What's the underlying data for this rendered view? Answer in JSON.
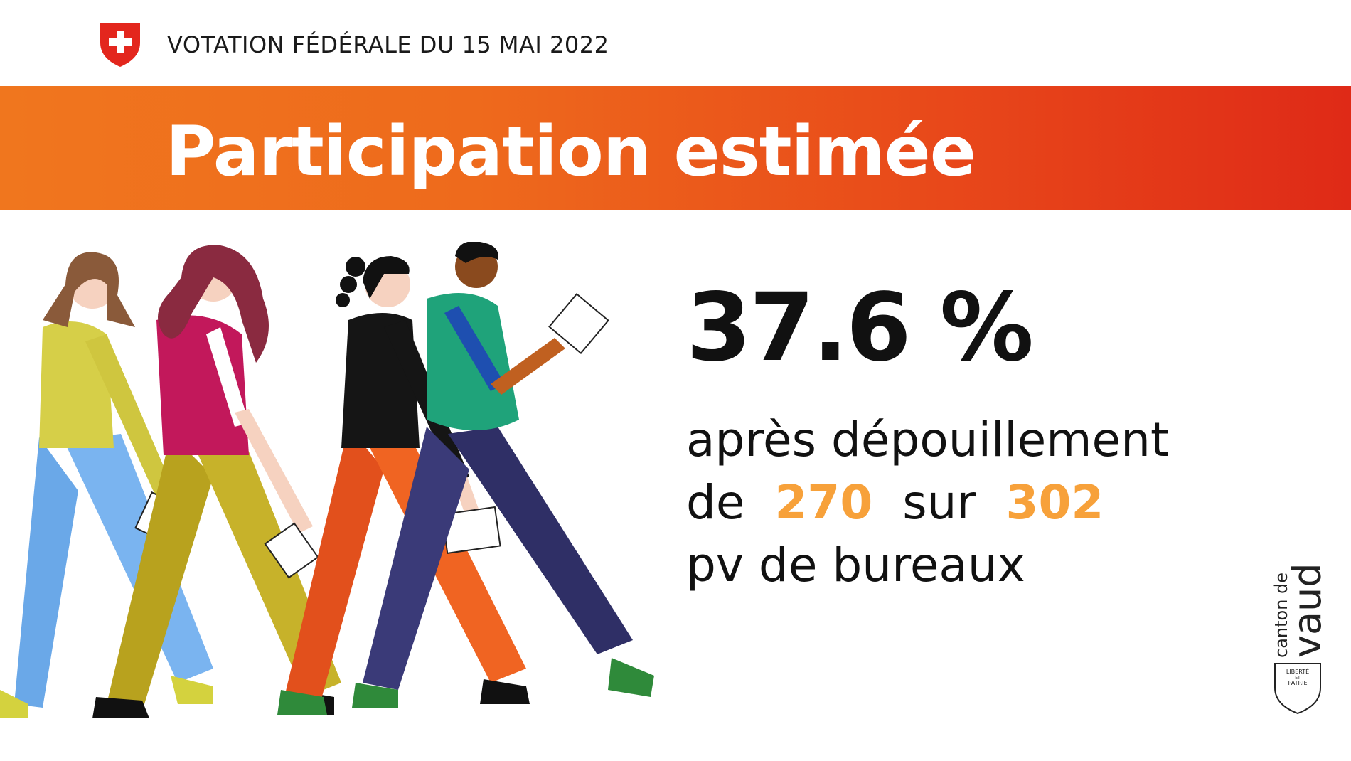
{
  "header": {
    "title": "VOTATION FÉDÉRALE DU 15 MAI 2022",
    "emblem": "swiss-cross-shield"
  },
  "banner": {
    "title": "Participation estimée"
  },
  "stat": {
    "percent": "37.6 %",
    "line1": "après dépouillement",
    "line2_prefix": "de",
    "counted": "270",
    "line2_mid": "sur",
    "total": "302",
    "line3": "pv de bureaux"
  },
  "logo": {
    "top": "canton de",
    "bottom": "vaud",
    "motto1": "LIBERTÉ",
    "motto2": "ET",
    "motto3": "PATRIE"
  },
  "colors": {
    "banner_start": "#f0761e",
    "banner_end": "#df2a17",
    "highlight": "#f7a13a",
    "swiss_red": "#e3261d"
  }
}
